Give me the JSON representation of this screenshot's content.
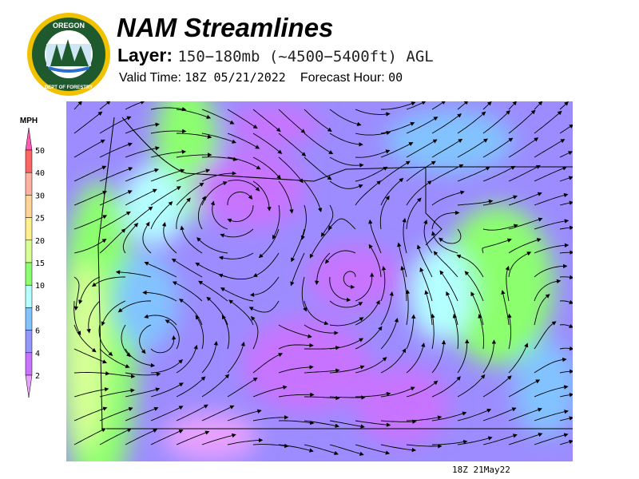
{
  "logo": {
    "text_top": "OREGON",
    "text_bottom": "DEPARTMENT OF FORESTRY"
  },
  "header": {
    "title": "NAM Streamlines",
    "layer_label": "Layer:",
    "layer_value": "150−180mb (~4500−5400ft) AGL",
    "valid_label": "Valid Time:",
    "valid_value": "18Z 05/21/2022",
    "forecast_label": "Forecast Hour:",
    "forecast_value": "00"
  },
  "legend": {
    "unit": "MPH",
    "levels": [
      {
        "label": "50",
        "color": "#ff6464"
      },
      {
        "label": "40",
        "color": "#ffb0a0"
      },
      {
        "label": "30",
        "color": "#ffd496"
      },
      {
        "label": "25",
        "color": "#fff08c"
      },
      {
        "label": "20",
        "color": "#d8ff96"
      },
      {
        "label": "15",
        "color": "#8cff6e"
      },
      {
        "label": "10",
        "color": "#b4ffff"
      },
      {
        "label": "8",
        "color": "#82c3ff"
      },
      {
        "label": "6",
        "color": "#9696ff"
      },
      {
        "label": "4",
        "color": "#c873ff"
      },
      {
        "label": "2",
        "color": "#e8a0ff"
      }
    ],
    "top_arrow_color": "#ff5ab4"
  },
  "footer": {
    "timestamp": "18Z 21May22"
  }
}
